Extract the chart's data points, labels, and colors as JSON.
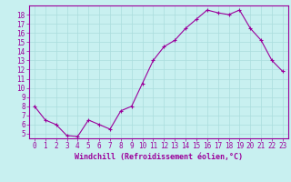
{
  "x": [
    0,
    1,
    2,
    3,
    4,
    5,
    6,
    7,
    8,
    9,
    10,
    11,
    12,
    13,
    14,
    15,
    16,
    17,
    18,
    19,
    20,
    21,
    22,
    23
  ],
  "y": [
    8.0,
    6.5,
    6.0,
    4.8,
    4.7,
    6.5,
    6.0,
    5.5,
    7.5,
    8.0,
    10.5,
    13.0,
    14.5,
    15.2,
    16.5,
    17.5,
    18.5,
    18.2,
    18.0,
    18.5,
    16.5,
    15.2,
    13.0,
    11.8
  ],
  "line_color": "#9b009b",
  "marker": "+",
  "marker_size": 3,
  "bg_color": "#c8f0f0",
  "grid_color": "#aadddd",
  "xlabel": "Windchill (Refroidissement éolien,°C)",
  "ylim": [
    4.5,
    19.0
  ],
  "xlim": [
    -0.5,
    23.5
  ],
  "yticks": [
    5,
    6,
    7,
    8,
    9,
    10,
    11,
    12,
    13,
    14,
    15,
    16,
    17,
    18
  ],
  "xticks": [
    0,
    1,
    2,
    3,
    4,
    5,
    6,
    7,
    8,
    9,
    10,
    11,
    12,
    13,
    14,
    15,
    16,
    17,
    18,
    19,
    20,
    21,
    22,
    23
  ],
  "tick_color": "#9b009b",
  "font_color": "#9b009b",
  "spine_color": "#9b009b",
  "tick_fontsize": 5.5,
  "xlabel_fontsize": 6.0,
  "linewidth": 0.8,
  "markeredgewidth": 0.8
}
